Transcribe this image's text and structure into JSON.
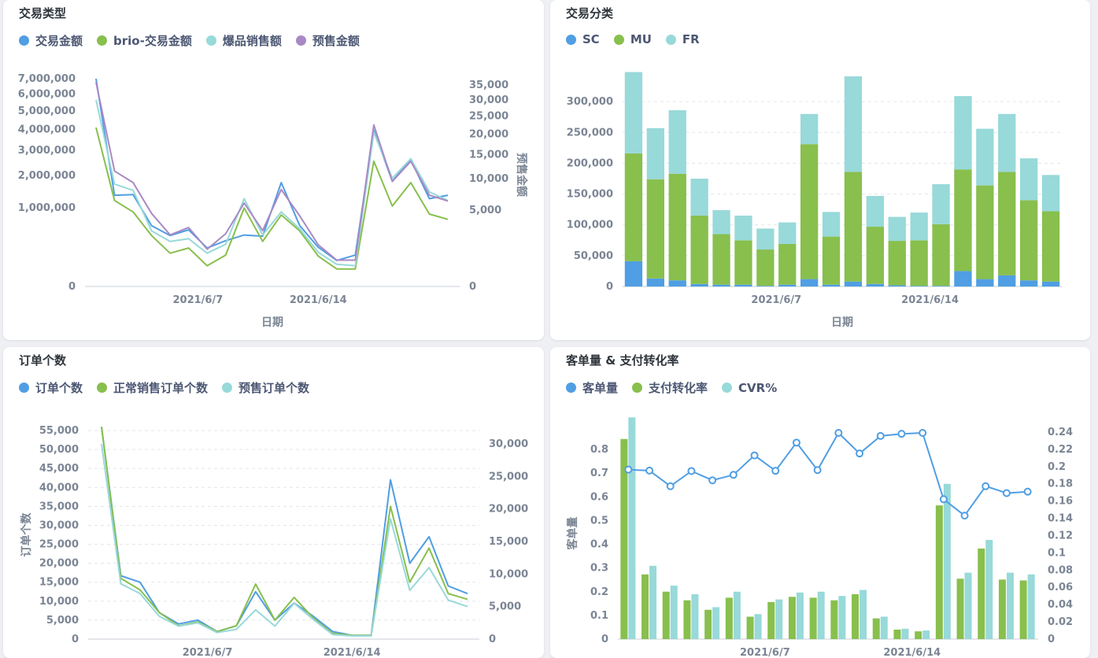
{
  "cards": [
    {
      "title": "交易类型",
      "legend": [
        {
          "label": "交易金额",
          "color": "#509ee3"
        },
        {
          "label": "brio-交易金额",
          "color": "#88bf4d"
        },
        {
          "label": "爆品销售额",
          "color": "#98d9d9"
        },
        {
          "label": "预售金额",
          "color": "#a989c5"
        }
      ]
    },
    {
      "title": "交易分类",
      "legend": [
        {
          "label": "SC",
          "color": "#509ee3"
        },
        {
          "label": "MU",
          "color": "#88bf4d"
        },
        {
          "label": "FR",
          "color": "#98d9d9"
        }
      ]
    },
    {
      "title": "订单个数",
      "legend": [
        {
          "label": "订单个数",
          "color": "#509ee3"
        },
        {
          "label": "正常销售订单个数",
          "color": "#88bf4d"
        },
        {
          "label": "预售订单个数",
          "color": "#98d9d9"
        }
      ]
    },
    {
      "title": "客单量 & 支付转化率",
      "legend": [
        {
          "label": "客单量",
          "color": "#509ee3"
        },
        {
          "label": "支付转化率",
          "color": "#88bf4d"
        },
        {
          "label": "CVR%",
          "color": "#98d9d9"
        }
      ]
    }
  ],
  "chart_data": [
    {
      "type": "line",
      "title": "交易类型",
      "xlabel": "日期",
      "ylabel": "",
      "y2label": "预售金额",
      "yscale": "sqrt",
      "x_ticks": [
        "2021/6/7",
        "2021/6/14"
      ],
      "y_ticks": [
        "7,000,000",
        "6,000,000",
        "5,000,000",
        "4,000,000",
        "3,000,000",
        "2,000,000",
        "1,000,000",
        "0"
      ],
      "y2_ticks": [
        "35,000",
        "30,000",
        "25,000",
        "20,000",
        "15,000",
        "10,000",
        "5,000",
        "0"
      ],
      "ylim": [
        0,
        7000000
      ],
      "y2lim": [
        0,
        35000
      ],
      "series": [
        {
          "name": "交易金额",
          "axis": "left",
          "color": "#509ee3",
          "values": [
            7000000,
            1350000,
            1370000,
            600000,
            420000,
            520000,
            240000,
            340000,
            430000,
            410000,
            1750000,
            600000,
            250000,
            110000,
            160000,
            3950000,
            1800000,
            2600000,
            1250000,
            1350000
          ]
        },
        {
          "name": "brio-交易金额",
          "axis": "left",
          "color": "#88bf4d",
          "values": [
            4100000,
            1200000,
            900000,
            420000,
            180000,
            240000,
            70000,
            160000,
            1000000,
            330000,
            830000,
            500000,
            150000,
            50000,
            50000,
            2550000,
            1050000,
            1750000,
            850000,
            730000
          ]
        },
        {
          "name": "爆品销售额",
          "axis": "left",
          "color": "#98d9d9",
          "values": [
            5650000,
            1700000,
            1500000,
            500000,
            330000,
            370000,
            180000,
            290000,
            1250000,
            430000,
            900000,
            540000,
            190000,
            80000,
            70000,
            3850000,
            1900000,
            2650000,
            1450000,
            1200000
          ]
        },
        {
          "name": "预售金额",
          "axis": "right",
          "color": "#a989c5",
          "values": [
            36000,
            11500,
            9300,
            4600,
            2300,
            3000,
            1200,
            2400,
            6000,
            2700,
            8100,
            4300,
            1500,
            600,
            600,
            22500,
            9500,
            13500,
            7200,
            6300
          ]
        }
      ]
    },
    {
      "type": "bar",
      "stacked": true,
      "title": "交易分类",
      "xlabel": "日期",
      "ylabel": "",
      "x_ticks": [
        "2021/6/7",
        "2021/6/14"
      ],
      "y_ticks": [
        "300,000",
        "250,000",
        "200,000",
        "150,000",
        "100,000",
        "50,000",
        "0"
      ],
      "ylim": [
        0,
        350000
      ],
      "series": [
        {
          "name": "SC",
          "color": "#509ee3",
          "values": [
            41000,
            13000,
            10000,
            4000,
            3000,
            3000,
            1000,
            3000,
            12000,
            3000,
            8000,
            4000,
            2000,
            1000,
            1000,
            25000,
            12000,
            18000,
            10000,
            8000
          ]
        },
        {
          "name": "MU",
          "color": "#88bf4d",
          "values": [
            175000,
            161000,
            173000,
            111000,
            82000,
            72000,
            59000,
            66000,
            219000,
            78000,
            178000,
            93000,
            72000,
            74000,
            100000,
            165000,
            152000,
            168000,
            130000,
            114000
          ]
        },
        {
          "name": "FR",
          "color": "#98d9d9",
          "values": [
            132000,
            83000,
            103000,
            60000,
            39000,
            40000,
            34000,
            35000,
            49000,
            40000,
            155000,
            50000,
            39000,
            45000,
            65000,
            119000,
            92000,
            94000,
            68000,
            59000
          ]
        }
      ]
    },
    {
      "type": "line",
      "title": "订单个数",
      "xlabel": "",
      "ylabel": "订单个数",
      "x_ticks": [
        "2021/6/7",
        "2021/6/14"
      ],
      "y_ticks": [
        "55,000",
        "50,000",
        "45,000",
        "40,000",
        "35,000",
        "30,000",
        "25,000",
        "20,000",
        "15,000",
        "10,000",
        "5,000",
        "0"
      ],
      "y2_ticks": [
        "30,000",
        "25,000",
        "20,000",
        "15,000",
        "10,000",
        "5,000",
        "0"
      ],
      "ylim": [
        0,
        55000
      ],
      "y2lim": [
        0,
        30000
      ],
      "series": [
        {
          "name": "订单个数",
          "axis": "left",
          "color": "#509ee3",
          "values": [
            56000,
            16700,
            15000,
            7000,
            4000,
            5000,
            2000,
            3500,
            12500,
            5000,
            9500,
            6000,
            2000,
            1000,
            1000,
            42000,
            20000,
            27000,
            14000,
            12000
          ]
        },
        {
          "name": "正常销售订单个数",
          "axis": "left",
          "color": "#88bf4d",
          "values": [
            56000,
            16000,
            13000,
            7000,
            3500,
            4500,
            2000,
            3500,
            14500,
            5000,
            11000,
            5500,
            1500,
            1000,
            1000,
            35000,
            15000,
            24000,
            12000,
            10500
          ]
        },
        {
          "name": "预售订单个数",
          "axis": "right",
          "color": "#98d9d9",
          "values": [
            30000,
            8500,
            7000,
            3500,
            2000,
            2500,
            1000,
            1500,
            4500,
            2000,
            5500,
            3000,
            700,
            500,
            500,
            18500,
            7500,
            11000,
            6000,
            5000
          ]
        }
      ]
    },
    {
      "type": "bar",
      "title": "客单量 & 支付转化率",
      "xlabel": "",
      "ylabel": "客单量",
      "x_ticks": [
        "2021/6/7",
        "2021/6/14"
      ],
      "y_ticks": [
        "0.8",
        "0.7",
        "0.6",
        "0.5",
        "0.4",
        "0.3",
        "0.2",
        "0.1",
        "0"
      ],
      "y2_ticks": [
        "0.24",
        "0.22",
        "0.2",
        "0.18",
        "0.16",
        "0.14",
        "0.12",
        "0.1",
        "0.08",
        "0.06",
        "0.04",
        "0.02",
        "0"
      ],
      "ylim": [
        0,
        0.85
      ],
      "y2lim": [
        0,
        0.25
      ],
      "series": [
        {
          "name": "客单量",
          "kind": "line",
          "axis": "left",
          "color": "#509ee3",
          "values": [
            0.715,
            0.711,
            0.645,
            0.709,
            0.67,
            0.693,
            0.775,
            0.71,
            0.829,
            0.713,
            0.87,
            0.783,
            0.857,
            0.866,
            0.87,
            0.59,
            0.521,
            0.645,
            0.616,
            0.622
          ]
        },
        {
          "name": "支付转化率",
          "kind": "bar",
          "axis": "right",
          "color": "#88bf4d",
          "values": [
            0.232,
            0.075,
            0.055,
            0.045,
            0.034,
            0.048,
            0.026,
            0.043,
            0.049,
            0.048,
            0.045,
            0.052,
            0.024,
            0.011,
            0.009,
            0.155,
            0.07,
            0.105,
            0.069,
            0.068
          ]
        },
        {
          "name": "CVR%",
          "kind": "bar",
          "axis": "right",
          "color": "#98d9d9",
          "values": [
            0.257,
            0.085,
            0.062,
            0.052,
            0.037,
            0.055,
            0.029,
            0.046,
            0.054,
            0.055,
            0.05,
            0.057,
            0.026,
            0.012,
            0.01,
            0.18,
            0.077,
            0.115,
            0.077,
            0.075
          ]
        }
      ]
    }
  ]
}
